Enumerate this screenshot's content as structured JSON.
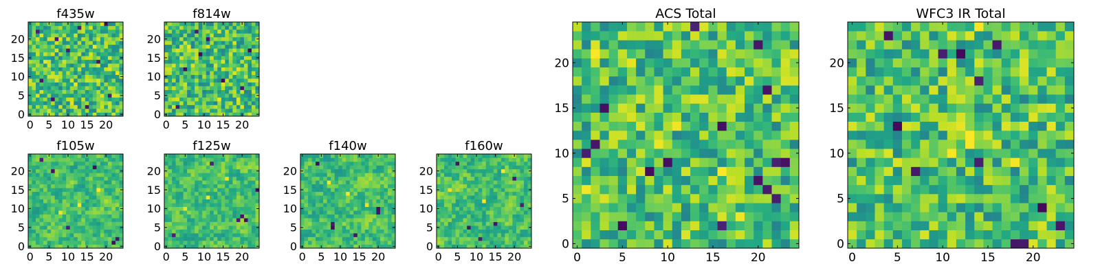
{
  "figure": {
    "colormap": "viridis",
    "background": "#ffffff"
  },
  "chart_data": [
    {
      "type": "heatmap",
      "title": "f435w",
      "seed": 435,
      "smooth": 0,
      "nrows": 25,
      "ncols": 25,
      "xlim": [
        -0.5,
        24.5
      ],
      "ylim": [
        -0.5,
        24.5
      ],
      "xticks": [
        0,
        5,
        10,
        15,
        20
      ],
      "yticks": [
        0,
        5,
        10,
        15,
        20
      ],
      "low_cells": [
        [
          2,
          22
        ],
        [
          7,
          20
        ],
        [
          20,
          24
        ],
        [
          10,
          17
        ],
        [
          13,
          23
        ],
        [
          21,
          5
        ],
        [
          3,
          9
        ],
        [
          18,
          14
        ],
        [
          15,
          2
        ],
        [
          6,
          4
        ]
      ],
      "high_cells": [
        [
          12,
          8
        ],
        [
          17,
          18
        ],
        [
          4,
          14
        ],
        [
          23,
          11
        ]
      ]
    },
    {
      "type": "heatmap",
      "title": "f814w",
      "seed": 814,
      "smooth": 0,
      "nrows": 25,
      "ncols": 25,
      "xlim": [
        -0.5,
        24.5
      ],
      "ylim": [
        -0.5,
        24.5
      ],
      "xticks": [
        0,
        5,
        10,
        15,
        20
      ],
      "yticks": [
        0,
        5,
        10,
        15,
        20
      ],
      "low_cells": [
        [
          9,
          16
        ],
        [
          5,
          12
        ],
        [
          3,
          2
        ],
        [
          20,
          7
        ],
        [
          8,
          22
        ],
        [
          11,
          20
        ],
        [
          15,
          9
        ],
        [
          22,
          17
        ]
      ],
      "high_cells": [
        [
          14,
          4
        ],
        [
          6,
          18
        ],
        [
          19,
          12
        ]
      ]
    },
    {
      "type": "heatmap",
      "title": "f105w",
      "seed": 105,
      "smooth": 1,
      "nrows": 25,
      "ncols": 25,
      "xlim": [
        -0.5,
        24.5
      ],
      "ylim": [
        -0.5,
        24.5
      ],
      "xticks": [
        0,
        5,
        10,
        15,
        20
      ],
      "yticks": [
        0,
        5,
        10,
        15,
        20
      ],
      "low_cells": [
        [
          22,
          1
        ],
        [
          23,
          2
        ],
        [
          17,
          21
        ],
        [
          6,
          20
        ],
        [
          3,
          23
        ],
        [
          10,
          5
        ]
      ],
      "high_cells": [
        [
          13,
          11
        ],
        [
          8,
          9
        ],
        [
          18,
          15
        ]
      ]
    },
    {
      "type": "heatmap",
      "title": "f125w",
      "seed": 125,
      "smooth": 1,
      "nrows": 25,
      "ncols": 25,
      "xlim": [
        -0.5,
        24.5
      ],
      "ylim": [
        -0.5,
        24.5
      ],
      "xticks": [
        0,
        5,
        10,
        15,
        20
      ],
      "yticks": [
        0,
        5,
        10,
        15,
        20
      ],
      "low_cells": [
        [
          19,
          7
        ],
        [
          20,
          8
        ],
        [
          21,
          7
        ],
        [
          2,
          3
        ],
        [
          12,
          22
        ],
        [
          24,
          15
        ]
      ],
      "high_cells": [
        [
          11,
          13
        ],
        [
          5,
          10
        ],
        [
          16,
          18
        ]
      ]
    },
    {
      "type": "heatmap",
      "title": "f140w",
      "seed": 140,
      "smooth": 1,
      "nrows": 25,
      "ncols": 25,
      "xlim": [
        -0.5,
        24.5
      ],
      "ylim": [
        -0.5,
        24.5
      ],
      "xticks": [
        0,
        5,
        10,
        15,
        20
      ],
      "yticks": [
        0,
        5,
        10,
        15,
        20
      ],
      "low_cells": [
        [
          8,
          5
        ],
        [
          8,
          6
        ],
        [
          20,
          9
        ],
        [
          20,
          10
        ],
        [
          14,
          3
        ],
        [
          4,
          22
        ]
      ],
      "high_cells": [
        [
          12,
          14
        ],
        [
          17,
          11
        ],
        [
          7,
          17
        ]
      ]
    },
    {
      "type": "heatmap",
      "title": "f160w",
      "seed": 160,
      "smooth": 1,
      "nrows": 25,
      "ncols": 25,
      "xlim": [
        -0.5,
        24.5
      ],
      "ylim": [
        -0.5,
        24.5
      ],
      "xticks": [
        0,
        5,
        10,
        15,
        20
      ],
      "yticks": [
        0,
        5,
        10,
        15,
        20
      ],
      "low_cells": [
        [
          20,
          18
        ],
        [
          8,
          5
        ],
        [
          15,
          6
        ],
        [
          22,
          11
        ],
        [
          5,
          22
        ],
        [
          11,
          2
        ]
      ],
      "high_cells": [
        [
          12,
          12
        ],
        [
          3,
          15
        ],
        [
          17,
          20
        ]
      ]
    },
    {
      "type": "heatmap",
      "title": "ACS Total",
      "seed": 1001,
      "smooth": 0,
      "nrows": 25,
      "ncols": 25,
      "xlim": [
        -0.5,
        24.5
      ],
      "ylim": [
        -0.5,
        24.5
      ],
      "xticks": [
        0,
        5,
        10,
        15,
        20
      ],
      "yticks": [
        0,
        5,
        10,
        15,
        20
      ],
      "low_cells": [
        [
          13,
          24
        ],
        [
          20,
          22
        ],
        [
          1,
          10
        ],
        [
          10,
          9
        ],
        [
          2,
          11
        ],
        [
          5,
          2
        ],
        [
          16,
          2
        ],
        [
          21,
          17
        ],
        [
          20,
          7
        ],
        [
          21,
          6
        ],
        [
          22,
          5
        ],
        [
          22,
          9
        ],
        [
          23,
          9
        ],
        [
          16,
          13
        ],
        [
          8,
          8
        ],
        [
          3,
          15
        ]
      ],
      "high_cells": [
        [
          11,
          13
        ],
        [
          2,
          21
        ],
        [
          16,
          8
        ],
        [
          6,
          20
        ],
        [
          9,
          11
        ],
        [
          18,
          3
        ],
        [
          1,
          6
        ]
      ]
    },
    {
      "type": "heatmap",
      "title": "WFC3 IR Total",
      "seed": 1002,
      "smooth": 0,
      "nrows": 25,
      "ncols": 25,
      "xlim": [
        -0.5,
        24.5
      ],
      "ylim": [
        -0.5,
        24.5
      ],
      "xticks": [
        0,
        5,
        10,
        15,
        20
      ],
      "yticks": [
        0,
        5,
        10,
        15,
        20
      ],
      "low_cells": [
        [
          5,
          13
        ],
        [
          7,
          8
        ],
        [
          14,
          18
        ],
        [
          18,
          0
        ],
        [
          19,
          0
        ],
        [
          21,
          4
        ],
        [
          23,
          2
        ],
        [
          4,
          23
        ],
        [
          10,
          21
        ],
        [
          12,
          21
        ],
        [
          16,
          22
        ],
        [
          14,
          9
        ]
      ],
      "high_cells": [
        [
          12,
          13
        ],
        [
          13,
          12
        ],
        [
          13,
          11
        ],
        [
          18,
          9
        ],
        [
          22,
          13
        ],
        [
          14,
          24
        ],
        [
          11,
          10
        ]
      ]
    }
  ]
}
